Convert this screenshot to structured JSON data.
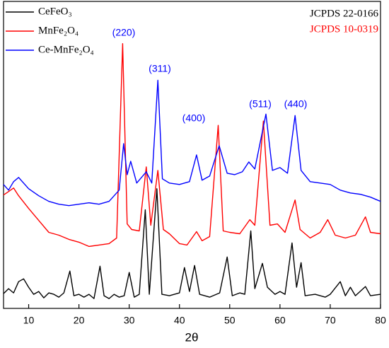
{
  "chart_data": {
    "type": "line",
    "xlabel": "2θ",
    "xlim": [
      5,
      80
    ],
    "ylim": [
      0,
      436
    ],
    "xticks": [
      10,
      20,
      30,
      40,
      50,
      60,
      70,
      80
    ],
    "legend": "upper left",
    "annotations": [
      "(220)",
      "(311)",
      "(400)",
      "(511)",
      "(440)",
      "JCPDS 22-0166",
      "JCPDS 10-0319"
    ],
    "series": [
      {
        "name": "CeFeO₃",
        "color": "#000000",
        "x": [
          5,
          6,
          7,
          8,
          9,
          10,
          11,
          12,
          13,
          14,
          15,
          16,
          17,
          18.2,
          19,
          20,
          21,
          22,
          23,
          24.2,
          25,
          26,
          27,
          28,
          29,
          30,
          31,
          32,
          33.2,
          34,
          35.5,
          36.5,
          38,
          40,
          41,
          42,
          43,
          44,
          46,
          48,
          49.5,
          50.5,
          52,
          53,
          54.2,
          55,
          56.5,
          57.5,
          59,
          60,
          61,
          62.4,
          63.3,
          64.2,
          65,
          67,
          69,
          70,
          72,
          73,
          74,
          75,
          77,
          78,
          80
        ],
        "values": [
          21,
          28,
          22,
          38,
          42,
          30,
          20,
          24,
          15,
          22,
          20,
          16,
          22,
          53,
          18,
          20,
          16,
          20,
          14,
          60,
          18,
          14,
          20,
          16,
          18,
          51,
          16,
          20,
          140,
          20,
          170,
          20,
          18,
          22,
          58,
          24,
          61,
          20,
          16,
          22,
          73,
          18,
          22,
          20,
          110,
          28,
          64,
          30,
          20,
          24,
          20,
          93,
          30,
          65,
          18,
          20,
          16,
          20,
          38,
          18,
          30,
          18,
          31,
          18,
          20
        ]
      },
      {
        "name": "MnFe₂O₄",
        "color": "#ff0000",
        "x": [
          5,
          6,
          7,
          8,
          10,
          12,
          14,
          16,
          18,
          20,
          22,
          24,
          26,
          27.5,
          28.7,
          29.6,
          30.5,
          32,
          33.4,
          34.3,
          35.7,
          36.8,
          38,
          40,
          41.5,
          43.4,
          44.5,
          46,
          47.7,
          48.7,
          50,
          52,
          54,
          55,
          56.7,
          58,
          59.5,
          61,
          63,
          64,
          66,
          68,
          69.5,
          71,
          73,
          75,
          77,
          78,
          80
        ],
        "values": [
          161,
          166,
          171,
          160,
          142,
          125,
          108,
          104,
          98,
          94,
          88,
          90,
          92,
          100,
          376,
          120,
          112,
          110,
          201,
          118,
          196,
          112,
          106,
          92,
          90,
          109,
          96,
          102,
          260,
          110,
          108,
          106,
          126,
          118,
          266,
          118,
          120,
          108,
          154,
          112,
          100,
          108,
          126,
          104,
          100,
          104,
          130,
          108,
          106
        ]
      },
      {
        "name": "Ce-MnFe₂O₄",
        "color": "#0000ff",
        "x": [
          5,
          6,
          7,
          8,
          10,
          12,
          14,
          16,
          18,
          20,
          22,
          24,
          26,
          28,
          28.9,
          29.6,
          30.3,
          31.5,
          33.4,
          34.5,
          35.7,
          36.6,
          38,
          40,
          42,
          43.4,
          44.5,
          46,
          47.9,
          49.5,
          51,
          52.5,
          53.8,
          55,
          57.2,
          58.5,
          60,
          61.5,
          63,
          64.2,
          66,
          68,
          70,
          72,
          74,
          76,
          78,
          80
        ],
        "values": [
          176,
          168,
          180,
          186,
          170,
          160,
          152,
          148,
          146,
          148,
          150,
          148,
          152,
          168,
          234,
          190,
          209,
          178,
          194,
          178,
          324,
          184,
          178,
          176,
          180,
          218,
          182,
          188,
          231,
          192,
          190,
          194,
          208,
          198,
          276,
          196,
          200,
          192,
          274,
          196,
          180,
          178,
          176,
          168,
          164,
          162,
          158,
          152
        ]
      }
    ]
  }
}
